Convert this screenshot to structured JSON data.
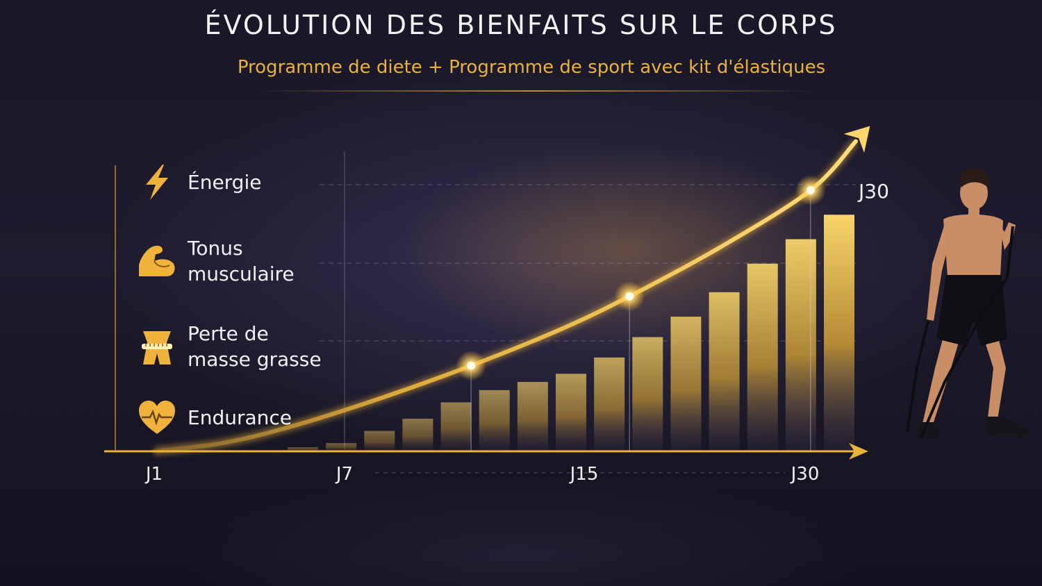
{
  "title": "ÉVOLUTION DES BIENFAITS SUR LE CORPS",
  "subtitle": "Programme de diete + Programme de sport avec kit d'élastiques",
  "legend": [
    {
      "label": "Énergie",
      "icon": "lightning-icon"
    },
    {
      "label": "Tonus\nmusculaire",
      "icon": "flexed-biceps-icon"
    },
    {
      "label": "Perte de\nmasse grasse",
      "icon": "waist-measuring-tape-icon"
    },
    {
      "label": "Endurance",
      "icon": "heartbeat-heart-icon"
    }
  ],
  "colors": {
    "accent": "#e9b23c",
    "gold_light": "#ffe28a",
    "background": "#1c1a2b"
  },
  "chart_data": {
    "type": "bar",
    "title": "ÉVOLUTION DES BIENFAITS SUR LE CORPS",
    "subtitle": "Programme de diete + Programme de sport avec kit d'élastiques",
    "x_ticks": [
      "J1",
      "J7",
      "J15",
      "J30"
    ],
    "end_label": "J30",
    "values": [
      1,
      2,
      5,
      8,
      12,
      15,
      17,
      19,
      23,
      28,
      33,
      39,
      46,
      52,
      58
    ],
    "trend": {
      "x": [
        1,
        4,
        7,
        11,
        15,
        19,
        22,
        26,
        30,
        32
      ],
      "y": [
        0,
        2,
        6,
        13,
        21,
        30,
        38,
        50,
        64,
        76
      ]
    },
    "highlight_points": [
      {
        "x": 15,
        "y": 21
      },
      {
        "x": 22,
        "y": 38
      },
      {
        "x": 30,
        "y": 64
      }
    ],
    "xlim": [
      1,
      32
    ],
    "ylim": [
      0,
      80
    ],
    "grid": "dashed",
    "legend_position": "left"
  }
}
